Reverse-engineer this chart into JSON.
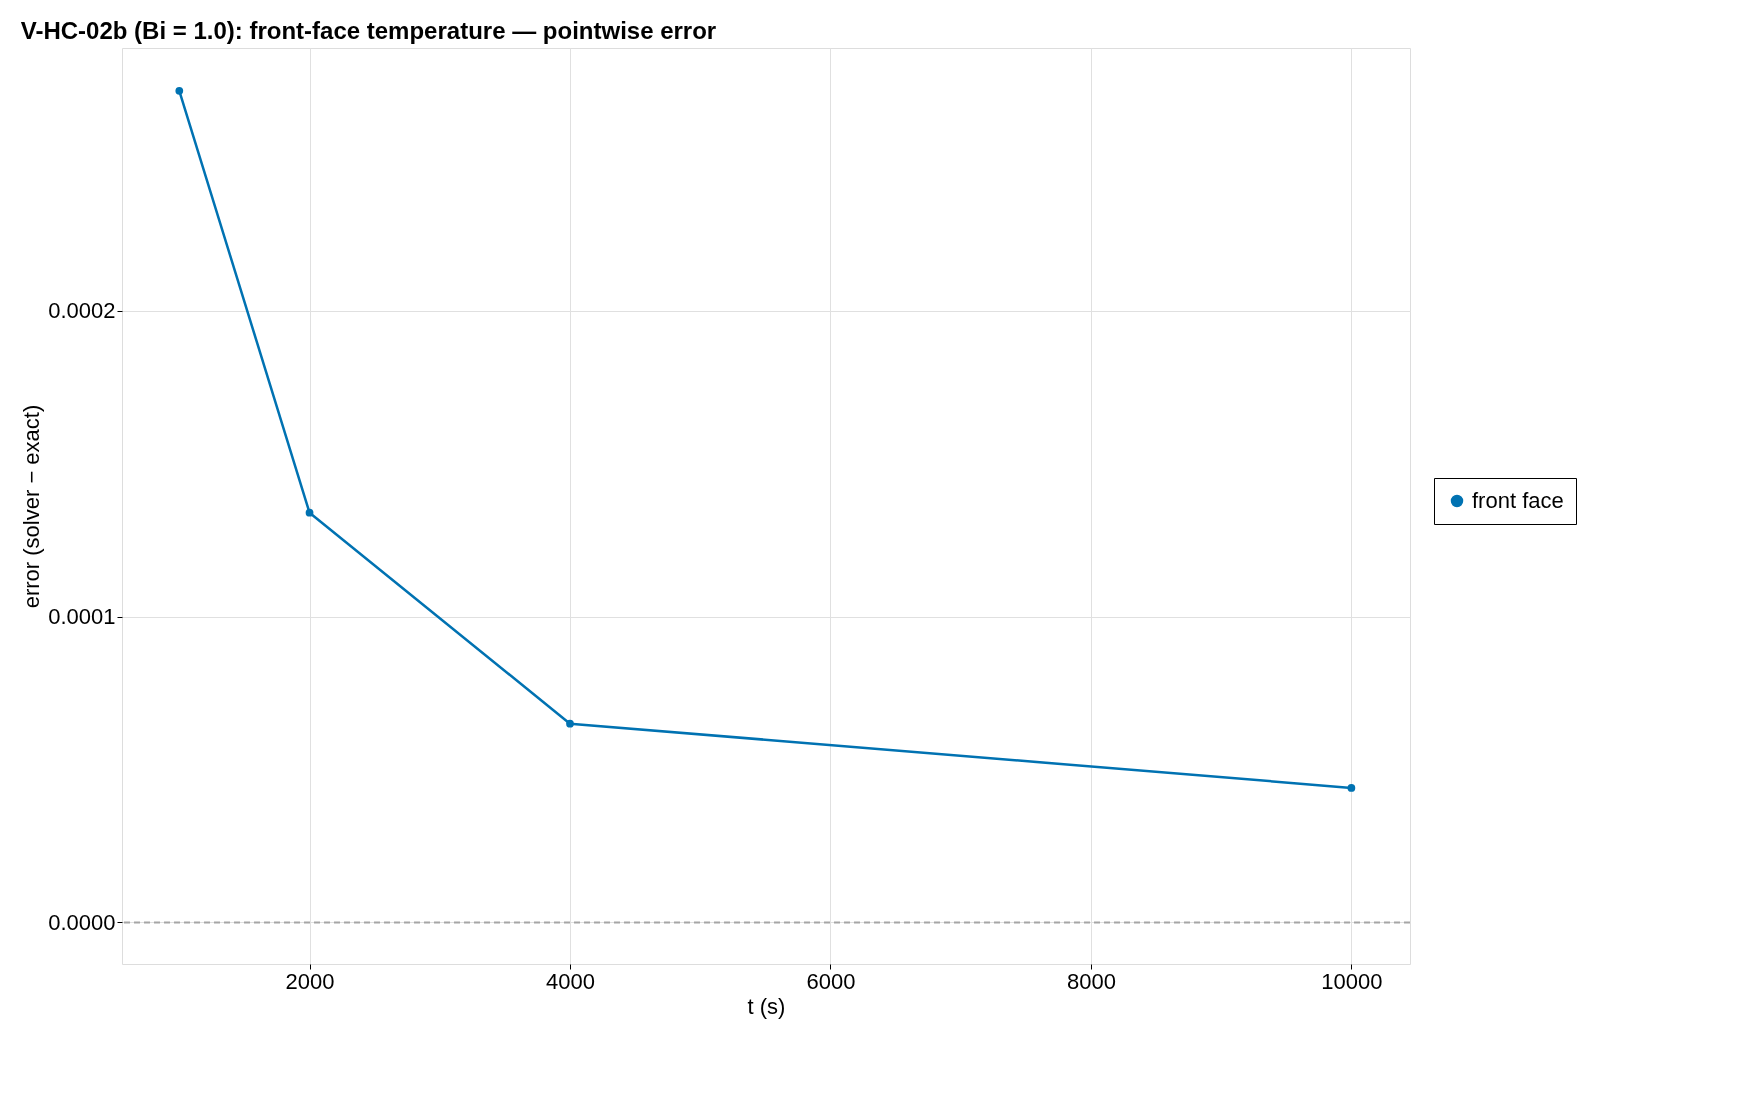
{
  "chart_data": {
    "type": "line",
    "title": "V-HC-02b (Bi = 1.0): front-face temperature — pointwise error",
    "xlabel": "t (s)",
    "ylabel": "error (solver − exact)",
    "x": [
      1000,
      2000,
      4000,
      10000
    ],
    "series": [
      {
        "name": "front face",
        "color": "#0072b2",
        "values": [
          0.000272,
          0.000134,
          6.5e-05,
          4.4e-05
        ]
      }
    ],
    "xlim": [
      560,
      10450
    ],
    "xticks": [
      2000,
      4000,
      6000,
      8000,
      10000
    ],
    "ylim": [
      -1.36e-05,
      0.000286
    ],
    "yticks": [
      {
        "value": 0,
        "label": "0.0000"
      },
      {
        "value": 0.0001,
        "label": "0.0001"
      },
      {
        "value": 0.0002,
        "label": "0.0002"
      }
    ],
    "ref_lines": [
      {
        "axis": "y",
        "value": 0,
        "color": "#a6a6a6",
        "line_style": "dashed"
      }
    ],
    "grid": true,
    "legend": "right",
    "marker": "circle",
    "line_style": "solid"
  }
}
